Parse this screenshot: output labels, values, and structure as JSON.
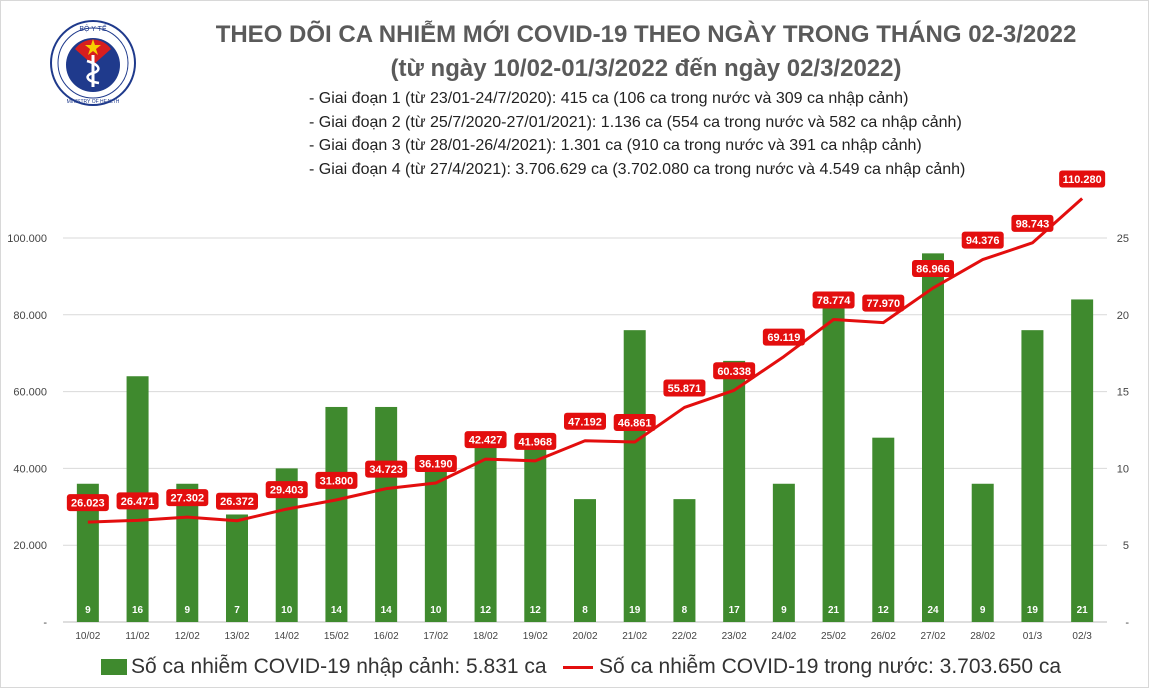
{
  "title": "THEO DÕI CA NHIỄM MỚI COVID-19 THEO NGÀY TRONG THÁNG 02-3/2022",
  "subtitle": "(từ ngày 10/02-01/3/2022 đến ngày 02/3/2022)",
  "phases": [
    "- Giai đoạn 1 (từ 23/01-24/7/2020): 415 ca (106 ca trong nước và 309 ca nhập cảnh)",
    "- Giai đoạn 2 (từ 25/7/2020-27/01/2021): 1.136 ca (554 ca trong nước và 582 ca nhập cảnh)",
    "- Giai đoạn 3 (từ 28/01-26/4/2021): 1.301 ca (910 ca trong nước và 391 ca nhập cảnh)",
    "- Giai đoạn 4 (từ 27/4/2021): 3.706.629 ca (3.702.080 ca trong nước và 4.549 ca nhập cảnh)"
  ],
  "logo": {
    "top_text": "BỘ Y TẾ",
    "bottom_text": "MINISTRY OF HEALTH",
    "colors": {
      "navy": "#1f3a8c",
      "red": "#d81e1e",
      "yellow": "#f6d000"
    }
  },
  "chart_data": {
    "type": "bar+line",
    "categories": [
      "10/02",
      "11/02",
      "12/02",
      "13/02",
      "14/02",
      "15/02",
      "16/02",
      "17/02",
      "18/02",
      "19/02",
      "20/02",
      "21/02",
      "22/02",
      "23/02",
      "24/02",
      "25/02",
      "26/02",
      "27/02",
      "28/02",
      "01/3",
      "02/3"
    ],
    "series": [
      {
        "name": "Số ca nhiễm COVID-19 nhập cảnh: 5.831 ca",
        "type": "bar",
        "axis": "right",
        "color": "#3f8a2e",
        "values": [
          9,
          16,
          9,
          7,
          10,
          14,
          14,
          10,
          12,
          12,
          8,
          19,
          8,
          17,
          9,
          21,
          12,
          24,
          9,
          19,
          21
        ],
        "labels": [
          "9",
          "16",
          "9",
          "7",
          "10",
          "14",
          "14",
          "10",
          "12",
          "12",
          "8",
          "19",
          "8",
          "17",
          "9",
          "21",
          "12",
          "24",
          "9",
          "19",
          "21"
        ]
      },
      {
        "name": "Số ca nhiễm COVID-19 trong nước: 3.703.650 ca",
        "type": "line",
        "axis": "left",
        "color": "#e30e0e",
        "values": [
          26023,
          26471,
          27302,
          26372,
          29403,
          31800,
          34723,
          36190,
          42427,
          41968,
          47192,
          46861,
          55871,
          60338,
          69119,
          78774,
          77970,
          86966,
          94376,
          98743,
          110280
        ],
        "labels": [
          "26.023",
          "26.471",
          "27.302",
          "26.372",
          "29.403",
          "31.800",
          "34.723",
          "36.190",
          "42.427",
          "41.968",
          "47.192",
          "46.861",
          "55.871",
          "60.338",
          "69.119",
          "78.774",
          "77.970",
          "86.966",
          "94.376",
          "98.743",
          "110.280"
        ]
      }
    ],
    "y_left": {
      "range": [
        0,
        100000
      ],
      "ticks": [
        0,
        20000,
        40000,
        60000,
        80000,
        100000
      ],
      "tick_labels": [
        "-",
        "20.000",
        "40.000",
        "60.000",
        "80.000",
        "100.000"
      ]
    },
    "y_right": {
      "range": [
        0,
        25
      ],
      "ticks": [
        0,
        5,
        10,
        15,
        20,
        25
      ],
      "tick_labels": [
        "-",
        "5",
        "10",
        "15",
        "20",
        "25"
      ]
    },
    "grid": "horizontal",
    "legend_position": "bottom"
  }
}
